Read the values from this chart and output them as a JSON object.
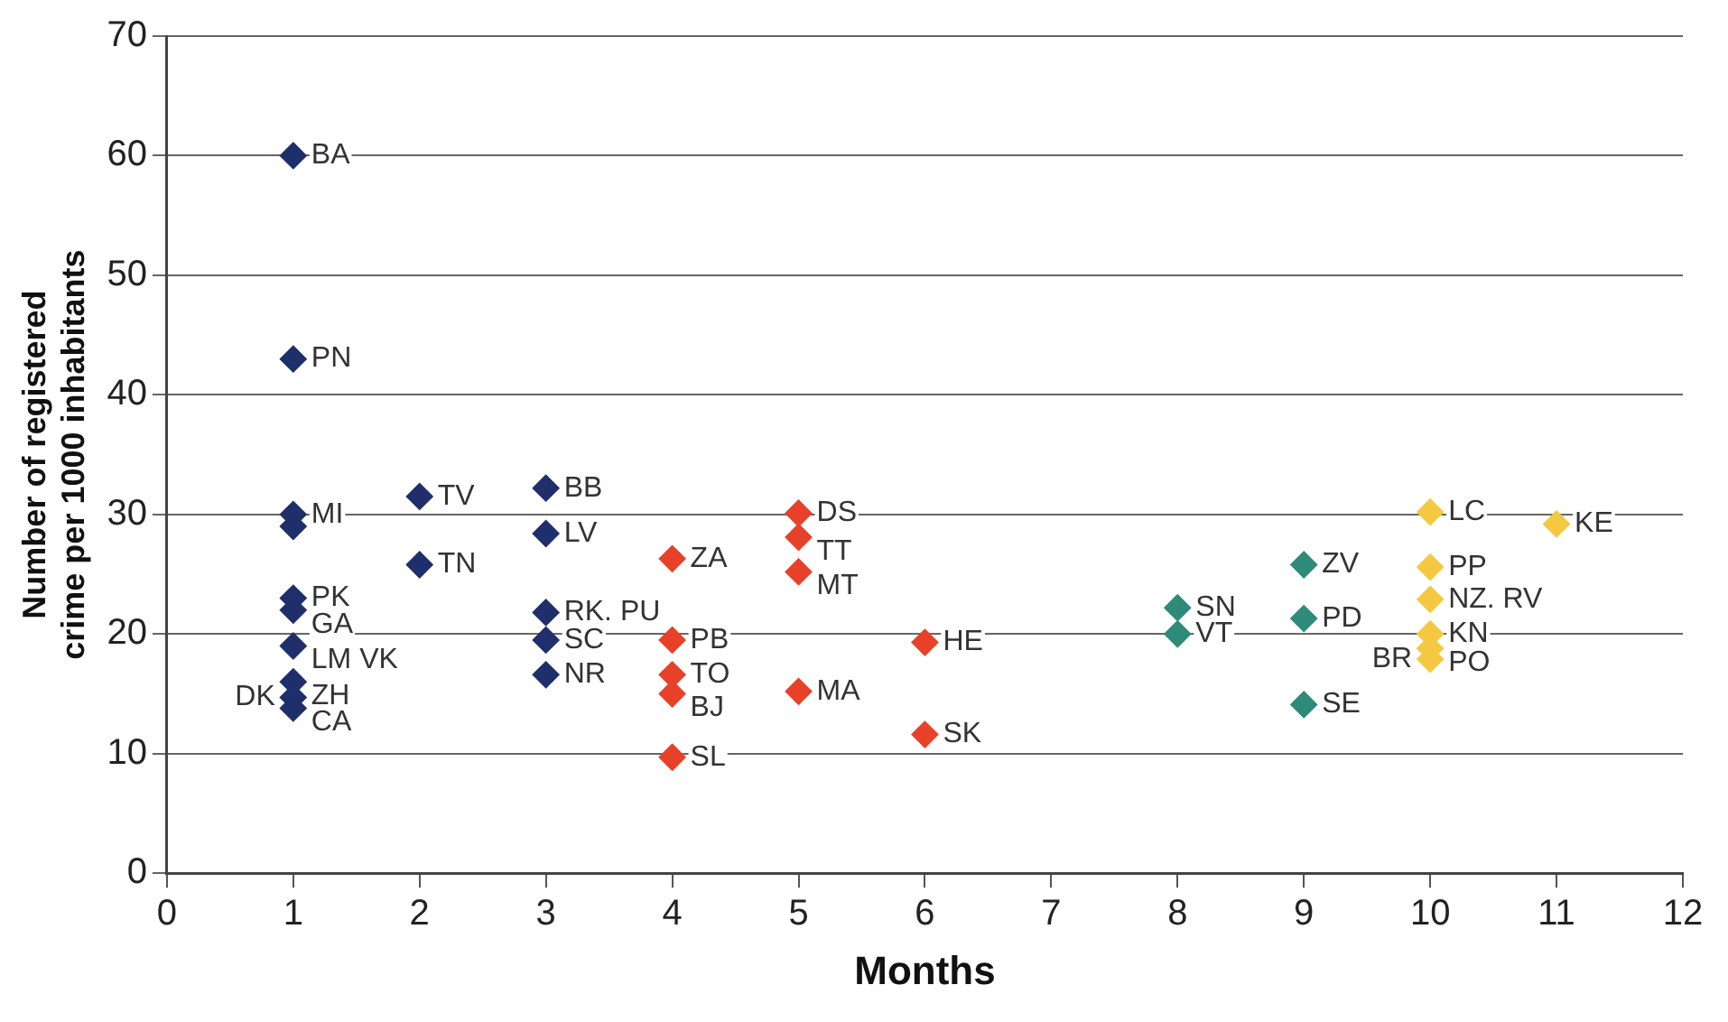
{
  "chart_data": {
    "type": "scatter",
    "xlabel": "Months",
    "ylabel": "Number of registered crime per 1000 inhabitants",
    "xlim": [
      0,
      12
    ],
    "xticks": [
      0,
      1,
      2,
      3,
      4,
      5,
      6,
      7,
      8,
      9,
      10,
      11,
      12
    ],
    "ylim": [
      0,
      70
    ],
    "yticks": [
      0,
      10,
      20,
      30,
      40,
      50,
      60,
      70
    ],
    "grid": "y",
    "legend": false,
    "marker": "diamond",
    "series": [
      {
        "color": "#1f2f6b",
        "x": [
          1,
          1,
          1,
          1,
          1,
          1,
          1,
          1,
          1,
          2,
          2,
          3,
          3,
          3,
          3,
          3
        ],
        "values": [
          60,
          43,
          30,
          29,
          23,
          22,
          19,
          16,
          14.7,
          31.5,
          25.8,
          32.2,
          28.4,
          21.8,
          19.5,
          16.6
        ]
      },
      {
        "color": "#e8412a",
        "x": [
          4,
          4,
          4,
          4,
          4,
          5,
          5,
          5,
          5,
          6,
          6
        ],
        "values": [
          26.3,
          19.5,
          16.6,
          15,
          9.7,
          30.1,
          28.1,
          25.2,
          15.2,
          19.3,
          11.6
        ]
      },
      {
        "color": "#2e8b7a",
        "x": [
          8,
          8,
          9,
          9,
          9
        ],
        "values": [
          22.2,
          20,
          25.8,
          21.3,
          14.1
        ]
      },
      {
        "color": "#f5c842",
        "x": [
          10,
          10,
          10,
          10,
          10,
          10,
          11
        ],
        "values": [
          30.2,
          25.6,
          22.9,
          20,
          18.8,
          17.9,
          29.2
        ]
      },
      {
        "color": "#1f2f6b",
        "x": [
          1
        ],
        "values": [
          13.8
        ]
      }
    ],
    "annotations": [
      {
        "text": "BA",
        "x": 1,
        "y": 60
      },
      {
        "text": "PN",
        "x": 1,
        "y": 43
      },
      {
        "text": "MI",
        "x": 1,
        "y": 30
      },
      {
        "text": "PK",
        "x": 1,
        "y": 23
      },
      {
        "text": "GA",
        "x": 1,
        "y": 22
      },
      {
        "text": "LM VK",
        "x": 1,
        "y": 19
      },
      {
        "text": "ZH",
        "x": 1,
        "y": 16
      },
      {
        "text": "DK",
        "x": 1,
        "y": 14.7
      },
      {
        "text": "CA",
        "x": 1,
        "y": 13.8
      },
      {
        "text": "TV",
        "x": 2,
        "y": 31.5
      },
      {
        "text": "TN",
        "x": 2,
        "y": 25.8
      },
      {
        "text": "BB",
        "x": 3,
        "y": 32.2
      },
      {
        "text": "LV",
        "x": 3,
        "y": 28.4
      },
      {
        "text": "RK. PU",
        "x": 3,
        "y": 21.8
      },
      {
        "text": "SC",
        "x": 3,
        "y": 19.5
      },
      {
        "text": "NR",
        "x": 3,
        "y": 16.6
      },
      {
        "text": "ZA",
        "x": 4,
        "y": 26.3
      },
      {
        "text": "PB",
        "x": 4,
        "y": 19.5
      },
      {
        "text": "TO",
        "x": 4,
        "y": 16.6
      },
      {
        "text": "BJ",
        "x": 4,
        "y": 15
      },
      {
        "text": "SL",
        "x": 4,
        "y": 9.7
      },
      {
        "text": "DS",
        "x": 5,
        "y": 30.1
      },
      {
        "text": "TT",
        "x": 5,
        "y": 28.1
      },
      {
        "text": "MT",
        "x": 5,
        "y": 25.2
      },
      {
        "text": "MA",
        "x": 5,
        "y": 15.2
      },
      {
        "text": "HE",
        "x": 6,
        "y": 19.3
      },
      {
        "text": "SK",
        "x": 6,
        "y": 11.6
      },
      {
        "text": "SN",
        "x": 8,
        "y": 22.2
      },
      {
        "text": "VT",
        "x": 8,
        "y": 20
      },
      {
        "text": "ZV",
        "x": 9,
        "y": 25.8
      },
      {
        "text": "PD",
        "x": 9,
        "y": 21.3
      },
      {
        "text": "SE",
        "x": 9,
        "y": 14.1
      },
      {
        "text": "LC",
        "x": 10,
        "y": 30.2
      },
      {
        "text": "PP",
        "x": 10,
        "y": 25.6
      },
      {
        "text": "NZ. RV",
        "x": 10,
        "y": 22.9
      },
      {
        "text": "KN",
        "x": 10,
        "y": 20
      },
      {
        "text": "PO",
        "x": 10,
        "y": 18.8
      },
      {
        "text": "BR",
        "x": 10,
        "y": 17.9
      },
      {
        "text": "KE",
        "x": 11,
        "y": 29.2
      }
    ]
  }
}
